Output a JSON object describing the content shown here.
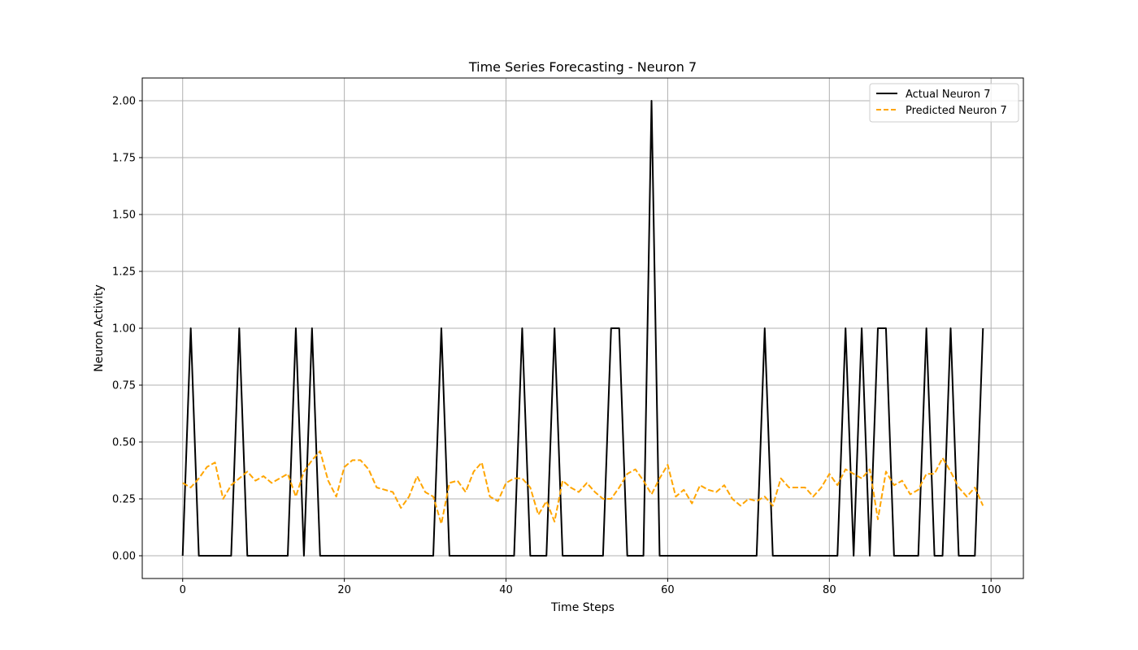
{
  "chart_data": {
    "type": "line",
    "title": "Time Series Forecasting - Neuron 7",
    "xlabel": "Time Steps",
    "ylabel": "Neuron Activity",
    "xlim": [
      -5,
      104
    ],
    "ylim": [
      -0.1,
      2.1
    ],
    "xticks": [
      0,
      20,
      40,
      60,
      80,
      100
    ],
    "yticks": [
      0.0,
      0.25,
      0.5,
      0.75,
      1.0,
      1.25,
      1.5,
      1.75,
      2.0
    ],
    "xtick_labels": [
      "0",
      "20",
      "40",
      "60",
      "80",
      "100"
    ],
    "ytick_labels": [
      "0.00",
      "0.25",
      "0.50",
      "0.75",
      "1.00",
      "1.25",
      "1.50",
      "1.75",
      "2.00"
    ],
    "grid": true,
    "legend_position": "top-right",
    "x": [
      0,
      1,
      2,
      3,
      4,
      5,
      6,
      7,
      8,
      9,
      10,
      11,
      12,
      13,
      14,
      15,
      16,
      17,
      18,
      19,
      20,
      21,
      22,
      23,
      24,
      25,
      26,
      27,
      28,
      29,
      30,
      31,
      32,
      33,
      34,
      35,
      36,
      37,
      38,
      39,
      40,
      41,
      42,
      43,
      44,
      45,
      46,
      47,
      48,
      49,
      50,
      51,
      52,
      53,
      54,
      55,
      56,
      57,
      58,
      59,
      60,
      61,
      62,
      63,
      64,
      65,
      66,
      67,
      68,
      69,
      70,
      71,
      72,
      73,
      74,
      75,
      76,
      77,
      78,
      79,
      80,
      81,
      82,
      83,
      84,
      85,
      86,
      87,
      88,
      89,
      90,
      91,
      92,
      93,
      94,
      95,
      96,
      97,
      98,
      99
    ],
    "series": [
      {
        "name": "Actual Neuron 7",
        "color": "#000000",
        "style": "solid",
        "values": [
          0,
          1,
          0,
          0,
          0,
          0,
          0,
          1,
          0,
          0,
          0,
          0,
          0,
          0,
          1,
          0,
          1,
          0,
          0,
          0,
          0,
          0,
          0,
          0,
          0,
          0,
          0,
          0,
          0,
          0,
          0,
          0,
          1,
          0,
          0,
          0,
          0,
          0,
          0,
          0,
          0,
          0,
          1,
          0,
          0,
          0,
          1,
          0,
          0,
          0,
          0,
          0,
          0,
          1,
          1,
          0,
          0,
          0,
          2,
          0,
          0,
          0,
          0,
          0,
          0,
          0,
          0,
          0,
          0,
          0,
          0,
          0,
          1,
          0,
          0,
          0,
          0,
          0,
          0,
          0,
          0,
          0,
          1,
          0,
          1,
          0,
          1,
          1,
          0,
          0,
          0,
          0,
          1,
          0,
          0,
          1,
          0,
          0,
          0,
          1
        ]
      },
      {
        "name": "Predicted Neuron 7",
        "color": "#FFA500",
        "style": "dashed",
        "values": [
          0.32,
          0.3,
          0.34,
          0.39,
          0.41,
          0.25,
          0.31,
          0.34,
          0.37,
          0.33,
          0.35,
          0.32,
          0.34,
          0.36,
          0.26,
          0.37,
          0.42,
          0.46,
          0.33,
          0.26,
          0.39,
          0.42,
          0.42,
          0.38,
          0.3,
          0.29,
          0.28,
          0.21,
          0.26,
          0.35,
          0.28,
          0.26,
          0.14,
          0.32,
          0.33,
          0.28,
          0.37,
          0.41,
          0.26,
          0.24,
          0.32,
          0.34,
          0.34,
          0.3,
          0.18,
          0.24,
          0.15,
          0.33,
          0.3,
          0.28,
          0.32,
          0.28,
          0.25,
          0.25,
          0.3,
          0.36,
          0.38,
          0.33,
          0.27,
          0.34,
          0.4,
          0.26,
          0.29,
          0.23,
          0.31,
          0.29,
          0.28,
          0.31,
          0.25,
          0.22,
          0.25,
          0.24,
          0.26,
          0.22,
          0.34,
          0.3,
          0.3,
          0.3,
          0.26,
          0.3,
          0.36,
          0.31,
          0.38,
          0.36,
          0.34,
          0.38,
          0.16,
          0.37,
          0.31,
          0.33,
          0.27,
          0.29,
          0.36,
          0.36,
          0.43,
          0.37,
          0.3,
          0.26,
          0.3,
          0.22
        ]
      }
    ]
  }
}
